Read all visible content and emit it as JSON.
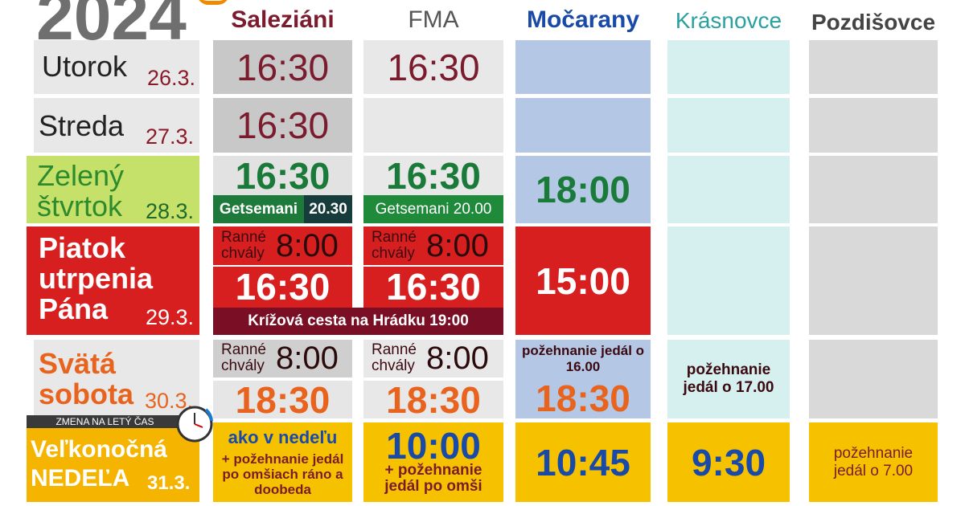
{
  "header": {
    "year": "2024",
    "columns": [
      "Saleziáni",
      "FMA",
      "Močarany",
      "Krásnovce",
      "Pozdišovce"
    ]
  },
  "note": "ZMENA NA LETÝ ČAS",
  "rows": [
    {
      "day": "Utorok",
      "date": "26.3.",
      "saleziani": [
        "16:30"
      ],
      "fma": [
        "16:30"
      ]
    },
    {
      "day": "Streda",
      "date": "27.3.",
      "saleziani": [
        "16:30"
      ]
    },
    {
      "day": "Zelený štvrtok",
      "date": "28.3.",
      "saleziani": [
        "16:30",
        "Getsemani",
        "20.30"
      ],
      "fma": [
        "16:30",
        "Getsemani 20.00"
      ],
      "mocarany": [
        "18:00"
      ]
    },
    {
      "day": "Piatok utrpenia Pána",
      "date": "29.3.",
      "saleziani": [
        "Ranné chvály",
        "8:00",
        "16:30"
      ],
      "fma": [
        "Ranné chvály",
        "8:00",
        "16:30"
      ],
      "shared": "Krížová cesta na Hrádku 19:00",
      "mocarany": [
        "15:00"
      ]
    },
    {
      "day": "Svätá sobota",
      "date": "30.3.",
      "saleziani": [
        "Ranné chvály",
        "8:00",
        "18:30"
      ],
      "fma": [
        "Ranné chvály",
        "8:00",
        "18:30"
      ],
      "mocarany": [
        "požehnanie jedál o 16.00",
        "18:30"
      ],
      "krasnovce": [
        "požehnanie jedál o 17.00"
      ]
    },
    {
      "day": "Veľkonočná NEDEĽA",
      "date": "31.3.",
      "saleziani": [
        "ako v nedeľu",
        "+ požehnanie jedál po omšiach ráno a doobeda"
      ],
      "fma": [
        "10:00",
        "+ požehnanie jedál po omši"
      ],
      "mocarany": [
        "10:45"
      ],
      "krasnovce": [
        "9:30"
      ],
      "pozdisovce": [
        "požehnanie jedál o 7.00"
      ]
    }
  ]
}
